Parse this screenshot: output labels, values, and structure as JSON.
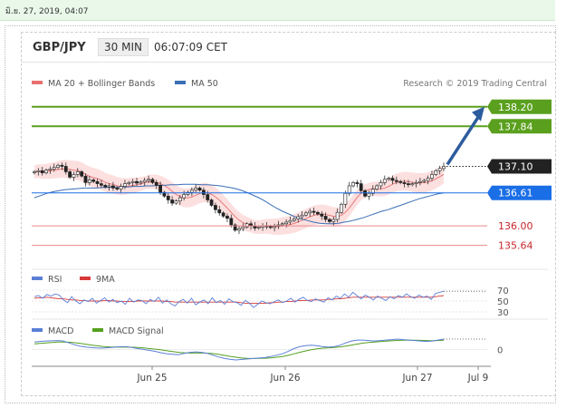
{
  "header": {
    "date_stamp": "มิ.ย. 27, 2019, 04:07",
    "symbol": "GBP/JPY",
    "timeframe": "30 MIN",
    "time": "06:07:09 CET",
    "credit": "Research © 2019 Trading Central"
  },
  "colors": {
    "green_level": "#5aa01e",
    "black_level": "#222222",
    "blue_level": "#1a6ee6",
    "red_level": "#e8898b",
    "arrow": "#2d5c9e",
    "ma50": "#3a6fb5",
    "ma20": "#e87070",
    "band_fill": "#fbd9d9",
    "rsi": "#5b7fd6",
    "rsi_9ma": "#d83a3a",
    "macd": "#5b7fd6",
    "macd_signal": "#55a020"
  },
  "chart_data": [
    {
      "type": "candlestick",
      "legend": [
        {
          "label": "MA 20 + Bollinger Bands",
          "color_key": "ma20"
        },
        {
          "label": "MA 50",
          "color_key": "ma50"
        }
      ],
      "x_ticks": [
        "Jun 25",
        "Jun 26",
        "Jun 27",
        "Jul 9"
      ],
      "y_range": [
        135.35,
        138.38
      ],
      "levels": [
        {
          "label": "138.20",
          "value": 138.2,
          "style": "green"
        },
        {
          "label": "137.84",
          "value": 137.84,
          "style": "green"
        },
        {
          "label": "137.10",
          "value": 137.1,
          "style": "black"
        },
        {
          "label": "136.61",
          "value": 136.61,
          "style": "blue"
        },
        {
          "label": "136.00",
          "value": 136.0,
          "style": "red"
        },
        {
          "label": "135.64",
          "value": 135.64,
          "style": "red"
        }
      ],
      "close": [
        137.0,
        137.02,
        136.98,
        137.03,
        137.05,
        137.08,
        137.12,
        137.1,
        137.0,
        136.9,
        136.95,
        137.0,
        136.92,
        136.8,
        136.85,
        136.82,
        136.78,
        136.75,
        136.72,
        136.74,
        136.7,
        136.68,
        136.73,
        136.78,
        136.8,
        136.82,
        136.79,
        136.81,
        136.84,
        136.86,
        136.8,
        136.75,
        136.62,
        136.55,
        136.48,
        136.42,
        136.46,
        136.52,
        136.58,
        136.62,
        136.66,
        136.7,
        136.66,
        136.58,
        136.48,
        136.38,
        136.3,
        136.24,
        136.18,
        136.14,
        136.02,
        135.92,
        135.95,
        135.98,
        136.04,
        136.0,
        135.96,
        135.98,
        136.0,
        135.99,
        135.97,
        135.99,
        136.02,
        136.04,
        136.07,
        136.1,
        136.13,
        136.17,
        136.2,
        136.24,
        136.27,
        136.25,
        136.22,
        136.18,
        136.12,
        136.08,
        136.12,
        136.25,
        136.4,
        136.6,
        136.74,
        136.8,
        136.78,
        136.65,
        136.55,
        136.6,
        136.68,
        136.74,
        136.8,
        136.86,
        136.88,
        136.84,
        136.82,
        136.8,
        136.78,
        136.76,
        136.78,
        136.8,
        136.82,
        136.84,
        136.88,
        136.95,
        137.02,
        137.06,
        137.1
      ],
      "ma50": [
        136.52,
        136.56,
        136.6,
        136.63,
        136.65,
        136.67,
        136.68,
        136.69,
        136.7,
        136.7,
        136.7,
        136.71,
        136.71,
        136.72,
        136.72,
        136.72,
        136.73,
        136.73,
        136.74,
        136.74,
        136.75,
        136.75,
        136.76,
        136.76,
        136.77,
        136.77,
        136.77,
        136.76,
        136.76,
        136.75,
        136.74,
        136.72,
        136.7,
        136.67,
        136.63,
        136.58,
        136.53,
        136.47,
        136.4,
        136.33,
        136.27,
        136.22,
        136.17,
        136.13,
        136.1,
        136.07,
        136.05,
        136.04,
        136.04,
        136.05,
        136.07,
        136.09,
        136.12,
        136.15,
        136.19,
        136.23,
        136.27,
        136.3,
        136.34,
        136.38,
        136.42,
        136.46,
        136.5,
        136.53,
        136.56,
        136.59,
        136.61
      ]
    },
    {
      "type": "line",
      "legend": [
        {
          "label": "RSI",
          "color_key": "rsi"
        },
        {
          "label": "9MA",
          "color_key": "rsi_9ma"
        }
      ],
      "y_ticks": [
        "70",
        "50",
        "30"
      ],
      "rsi": [
        58,
        60,
        55,
        62,
        59,
        63,
        61,
        52,
        47,
        58,
        50,
        45,
        52,
        49,
        55,
        46,
        51,
        56,
        48,
        53,
        47,
        50,
        44,
        55,
        48,
        52,
        51,
        45,
        53,
        49,
        57,
        46,
        52,
        45,
        41,
        49,
        53,
        46,
        55,
        43,
        48,
        52,
        45,
        56,
        47,
        51,
        44,
        54,
        49,
        47,
        42,
        51,
        46,
        38,
        44,
        50,
        47,
        45,
        49,
        52,
        47,
        50,
        55,
        48,
        53,
        57,
        51,
        49,
        54,
        51,
        48,
        56,
        52,
        59,
        55,
        63,
        57,
        66,
        60,
        54,
        61,
        57,
        52,
        59,
        55,
        51,
        58,
        54,
        60,
        57,
        63,
        58,
        55,
        61,
        57,
        59,
        53,
        64,
        66,
        68
      ],
      "rsi_9ma": [
        55,
        56,
        56,
        57,
        56,
        55,
        54,
        54,
        53,
        52,
        52,
        51,
        51,
        50,
        50,
        50,
        50,
        51,
        51,
        50,
        50,
        49,
        49,
        49,
        49,
        50,
        50,
        50,
        50,
        50,
        50,
        50,
        49,
        49,
        48,
        48,
        48,
        48,
        48,
        48,
        48,
        48,
        48,
        48,
        48,
        48,
        48,
        48,
        48,
        48,
        47,
        46,
        46,
        46,
        46,
        46,
        46,
        47,
        47,
        48,
        48,
        49,
        49,
        50,
        51,
        51,
        51,
        52,
        52,
        52,
        52,
        53,
        53,
        54,
        54,
        55,
        56,
        57,
        57,
        57,
        57,
        57,
        57,
        57,
        57,
        57,
        57,
        57,
        57,
        57,
        57,
        57,
        57,
        57,
        57,
        57,
        57,
        58,
        59,
        60
      ]
    },
    {
      "type": "line",
      "legend": [
        {
          "label": "MACD",
          "color_key": "macd"
        },
        {
          "label": "MACD Signal",
          "color_key": "macd_signal"
        }
      ],
      "y_ticks": [
        "0"
      ],
      "macd": [
        0.08,
        0.085,
        0.09,
        0.092,
        0.095,
        0.09,
        0.07,
        0.05,
        0.035,
        0.025,
        0.02,
        0.015,
        0.015,
        0.02,
        0.025,
        0.03,
        0.03,
        0.02,
        0.01,
        0.0,
        -0.01,
        -0.02,
        -0.035,
        -0.045,
        -0.05,
        -0.055,
        -0.04,
        -0.03,
        -0.025,
        -0.03,
        -0.04,
        -0.06,
        -0.08,
        -0.095,
        -0.105,
        -0.11,
        -0.105,
        -0.1,
        -0.095,
        -0.09,
        -0.085,
        -0.075,
        -0.06,
        -0.045,
        -0.02,
        0.01,
        0.03,
        0.04,
        0.045,
        0.04,
        0.03,
        0.025,
        0.03,
        0.045,
        0.07,
        0.09,
        0.1,
        0.1,
        0.095,
        0.09,
        0.095,
        0.1,
        0.105,
        0.11,
        0.105,
        0.1,
        0.095,
        0.09,
        0.085,
        0.09,
        0.1,
        0.11
      ],
      "signal": [
        0.06,
        0.065,
        0.07,
        0.075,
        0.08,
        0.08,
        0.078,
        0.072,
        0.064,
        0.055,
        0.046,
        0.038,
        0.032,
        0.028,
        0.026,
        0.025,
        0.025,
        0.024,
        0.021,
        0.016,
        0.01,
        0.004,
        -0.004,
        -0.013,
        -0.022,
        -0.03,
        -0.035,
        -0.037,
        -0.037,
        -0.037,
        -0.038,
        -0.043,
        -0.052,
        -0.062,
        -0.073,
        -0.082,
        -0.09,
        -0.094,
        -0.095,
        -0.094,
        -0.092,
        -0.088,
        -0.082,
        -0.074,
        -0.062,
        -0.046,
        -0.03,
        -0.015,
        -0.002,
        0.008,
        0.014,
        0.018,
        0.022,
        0.028,
        0.036,
        0.047,
        0.058,
        0.068,
        0.075,
        0.08,
        0.084,
        0.088,
        0.092,
        0.096,
        0.098,
        0.099,
        0.099,
        0.097,
        0.095,
        0.094,
        0.095,
        0.098
      ]
    }
  ]
}
